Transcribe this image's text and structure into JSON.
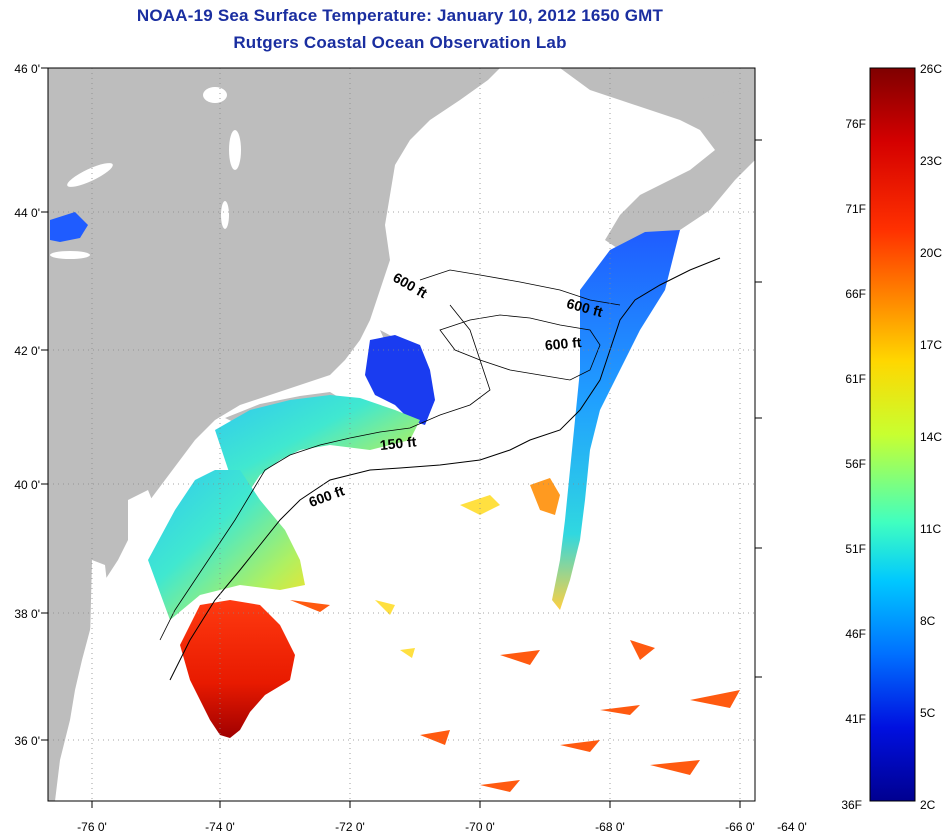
{
  "title_line1": "NOAA-19 Sea Surface Temperature:  January 10, 2012 1650 GMT",
  "title_line2": "Rutgers Coastal Ocean Observation Lab",
  "axes": {
    "lon_ticks": [
      "-76 0'",
      "-74 0'",
      "-72 0'",
      "-70 0'",
      "-68 0'",
      "-66 0'",
      "-64 0'"
    ],
    "lat_ticks": [
      "46 0'",
      "44 0'",
      "42 0'",
      "40 0'",
      "38 0'",
      "36 0'"
    ]
  },
  "contour_labels": [
    "600 ft",
    "600 ft",
    "600 ft",
    "150 ft",
    "600 ft"
  ],
  "colorbar": {
    "celsius_labels": [
      "26C",
      "23C",
      "20C",
      "17C",
      "14C",
      "11C",
      "8C",
      "5C",
      "2C"
    ],
    "fahrenheit_labels": [
      "76F",
      "71F",
      "66F",
      "61F",
      "56F",
      "51F",
      "46F",
      "41F",
      "36F"
    ],
    "colors": [
      "#7f0000",
      "#d40000",
      "#ff3000",
      "#ff8c00",
      "#ffd700",
      "#c8ff30",
      "#40ffc0",
      "#00c8ff",
      "#0070ff",
      "#0010e0",
      "#000090"
    ]
  },
  "colors": {
    "land": "#bdbdbd",
    "ocean_no_data": "#ffffff",
    "title": "#1a2ea0"
  }
}
